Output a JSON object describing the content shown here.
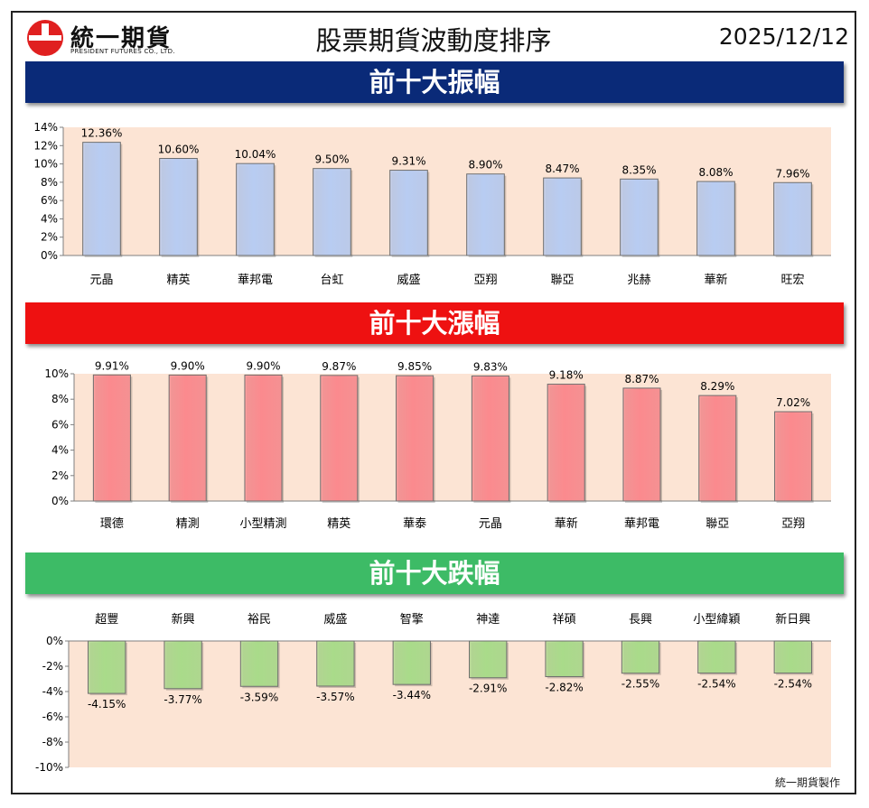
{
  "header": {
    "logo_cn": "統一期貨",
    "logo_en": "PRESIDENT FUTURES CO., LTD.",
    "title": "股票期貨波動度排序",
    "date": "2025/12/12"
  },
  "colors": {
    "blue_banner": "#0a2a78",
    "red_banner": "#ee1111",
    "green_banner": "#3dbb66",
    "plot_bg": "#fce4d4",
    "blue_bar": "#b8ccf2",
    "red_bar": "#fb8a8e",
    "green_bar": "#a9db8a"
  },
  "footer": "統一期貨製作",
  "chart_data": [
    {
      "type": "bar",
      "id": "range",
      "title": "前十大振幅",
      "categories": [
        "元晶",
        "精英",
        "華邦電",
        "台虹",
        "威盛",
        "亞翔",
        "聯亞",
        "兆赫",
        "華新",
        "旺宏"
      ],
      "values": [
        12.36,
        10.6,
        10.04,
        9.5,
        9.31,
        8.9,
        8.47,
        8.35,
        8.08,
        7.96
      ],
      "data_labels": [
        "12.36%",
        "10.60%",
        "10.04%",
        "9.50%",
        "9.31%",
        "8.90%",
        "8.47%",
        "8.35%",
        "8.08%",
        "7.96%"
      ],
      "ylim": [
        0,
        14
      ],
      "yticks": [
        0,
        2,
        4,
        6,
        8,
        10,
        12,
        14
      ],
      "ytick_labels": [
        "0%",
        "2%",
        "4%",
        "6%",
        "8%",
        "10%",
        "12%",
        "14%"
      ],
      "bar_color": "#b8ccf2",
      "category_position": "bottom"
    },
    {
      "type": "bar",
      "id": "gain",
      "title": "前十大漲幅",
      "categories": [
        "環德",
        "精測",
        "小型精測",
        "精英",
        "華泰",
        "元晶",
        "華新",
        "華邦電",
        "聯亞",
        "亞翔"
      ],
      "values": [
        9.91,
        9.9,
        9.9,
        9.87,
        9.85,
        9.83,
        9.18,
        8.87,
        8.29,
        7.02
      ],
      "data_labels": [
        "9.91%",
        "9.90%",
        "9.90%",
        "9.87%",
        "9.85%",
        "9.83%",
        "9.18%",
        "8.87%",
        "8.29%",
        "7.02%"
      ],
      "ylim": [
        0,
        10
      ],
      "yticks": [
        0,
        2,
        4,
        6,
        8,
        10
      ],
      "ytick_labels": [
        "0%",
        "2%",
        "4%",
        "6%",
        "8%",
        "10%"
      ],
      "bar_color": "#fb8a8e",
      "category_position": "bottom"
    },
    {
      "type": "bar",
      "id": "loss",
      "title": "前十大跌幅",
      "categories": [
        "超豐",
        "新興",
        "裕民",
        "威盛",
        "智擎",
        "神達",
        "祥碩",
        "長興",
        "小型緯穎",
        "新日興"
      ],
      "values": [
        -4.15,
        -3.77,
        -3.59,
        -3.57,
        -3.44,
        -2.91,
        -2.82,
        -2.55,
        -2.54,
        -2.54
      ],
      "data_labels": [
        "-4.15%",
        "-3.77%",
        "-3.59%",
        "-3.57%",
        "-3.44%",
        "-2.91%",
        "-2.82%",
        "-2.55%",
        "-2.54%",
        "-2.54%"
      ],
      "ylim": [
        -10,
        0
      ],
      "yticks": [
        0,
        -2,
        -4,
        -6,
        -8,
        -10
      ],
      "ytick_labels": [
        "0%",
        "-2%",
        "-4%",
        "-6%",
        "-8%",
        "-10%"
      ],
      "bar_color": "#a9db8a",
      "category_position": "top"
    }
  ]
}
